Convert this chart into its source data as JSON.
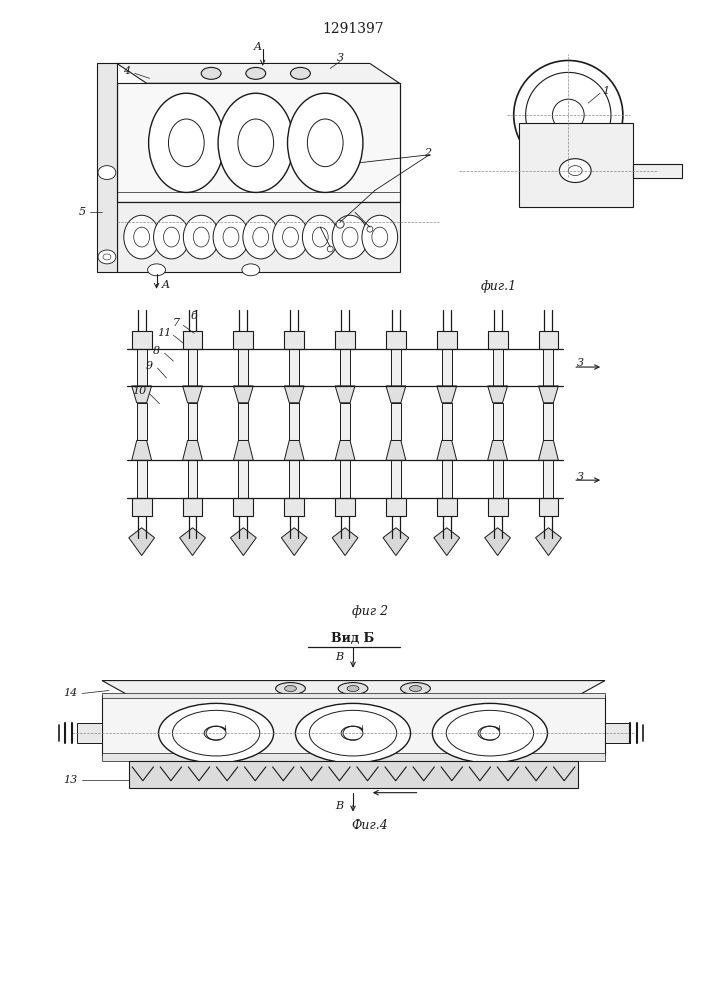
{
  "title": "1291397",
  "title_fontsize": 10,
  "bg_color": "#ffffff",
  "line_color": "#1a1a1a",
  "fig1_label": "фиг.1",
  "fig2_label": "фиг 2",
  "fig4_label": "Фиг.4",
  "vid_b_label": "Вид Б"
}
